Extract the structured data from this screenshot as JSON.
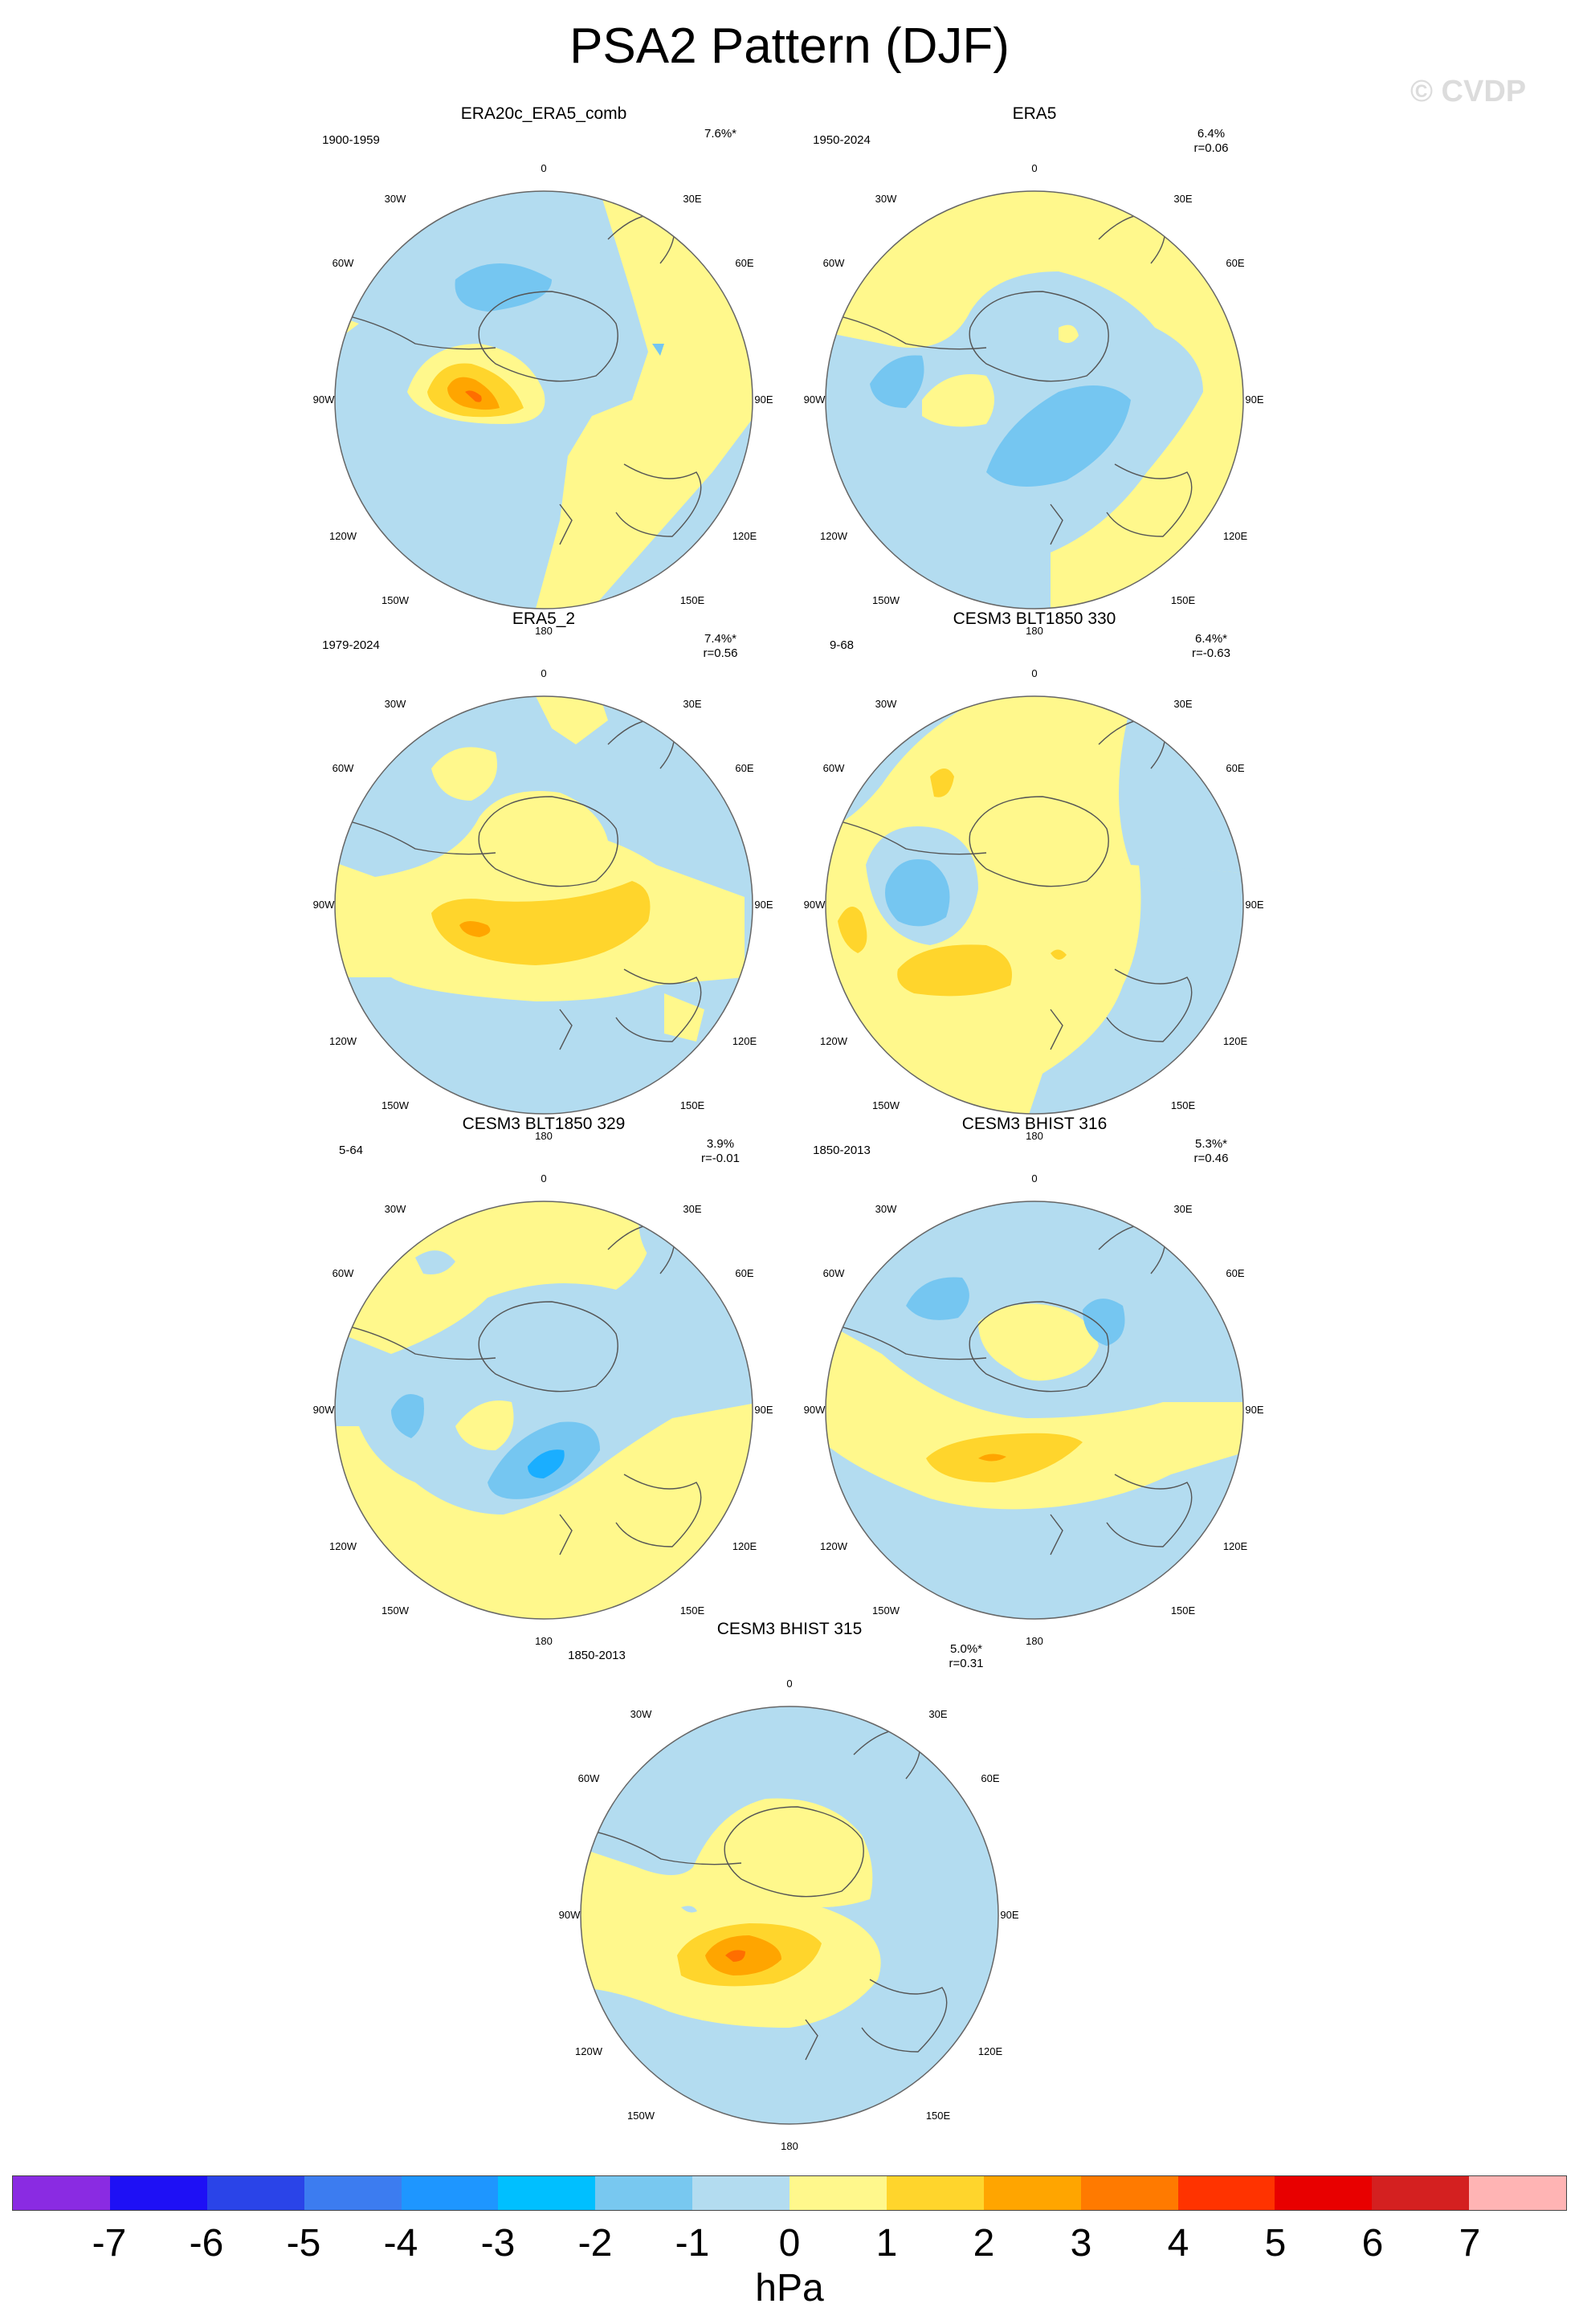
{
  "title": "PSA2 Pattern (DJF)",
  "watermark": "© CVDP",
  "colors": {
    "ocean_neg1": "#b3dcf0",
    "pos0_1": "#fff88c",
    "pos1_2": "#ffd52c",
    "pos2_3": "#ffa500",
    "pos3_4": "#ff6e00",
    "neg2_1": "#75c6f1",
    "neg3_2": "#1aaeff",
    "coast": "#555555"
  },
  "longitude_labels": [
    "0",
    "30E",
    "60E",
    "90E",
    "120E",
    "150E",
    "180",
    "150W",
    "120W",
    "90W",
    "60W",
    "30W"
  ],
  "panels": [
    {
      "title": "ERA20c_ERA5_comb",
      "years": "1900-1959",
      "pct": "7.6%*",
      "r": ""
    },
    {
      "title": "ERA5",
      "years": "1950-2024",
      "pct": "6.4%",
      "r": "r=0.06"
    },
    {
      "title": "ERA5_2",
      "years": "1979-2024",
      "pct": "7.4%*",
      "r": "r=0.56"
    },
    {
      "title": "CESM3 BLT1850 330",
      "years": "9-68",
      "pct": "6.4%*",
      "r": "r=-0.63"
    },
    {
      "title": "CESM3 BLT1850 329",
      "years": "5-64",
      "pct": "3.9%",
      "r": "r=-0.01"
    },
    {
      "title": "CESM3 BHIST 316",
      "years": "1850-2013",
      "pct": "5.3%*",
      "r": "r=0.46"
    },
    {
      "title": "CESM3 BHIST 315",
      "years": "1850-2013",
      "pct": "5.0%*",
      "r": "r=0.31"
    }
  ],
  "colorbar": {
    "colors": [
      "#8a2be2",
      "#1e10f5",
      "#2a44e8",
      "#3c7cf0",
      "#1e96ff",
      "#00bfff",
      "#78c8f0",
      "#b3dcf0",
      "#fff88c",
      "#ffd52c",
      "#ffa500",
      "#ff7a00",
      "#ff3300",
      "#e80000",
      "#d42020",
      "#ffb4b4"
    ],
    "ticks": [
      "-7",
      "-6",
      "-5",
      "-4",
      "-3",
      "-2",
      "-1",
      "0",
      "1",
      "2",
      "3",
      "4",
      "5",
      "6",
      "7"
    ],
    "units": "hPa"
  }
}
